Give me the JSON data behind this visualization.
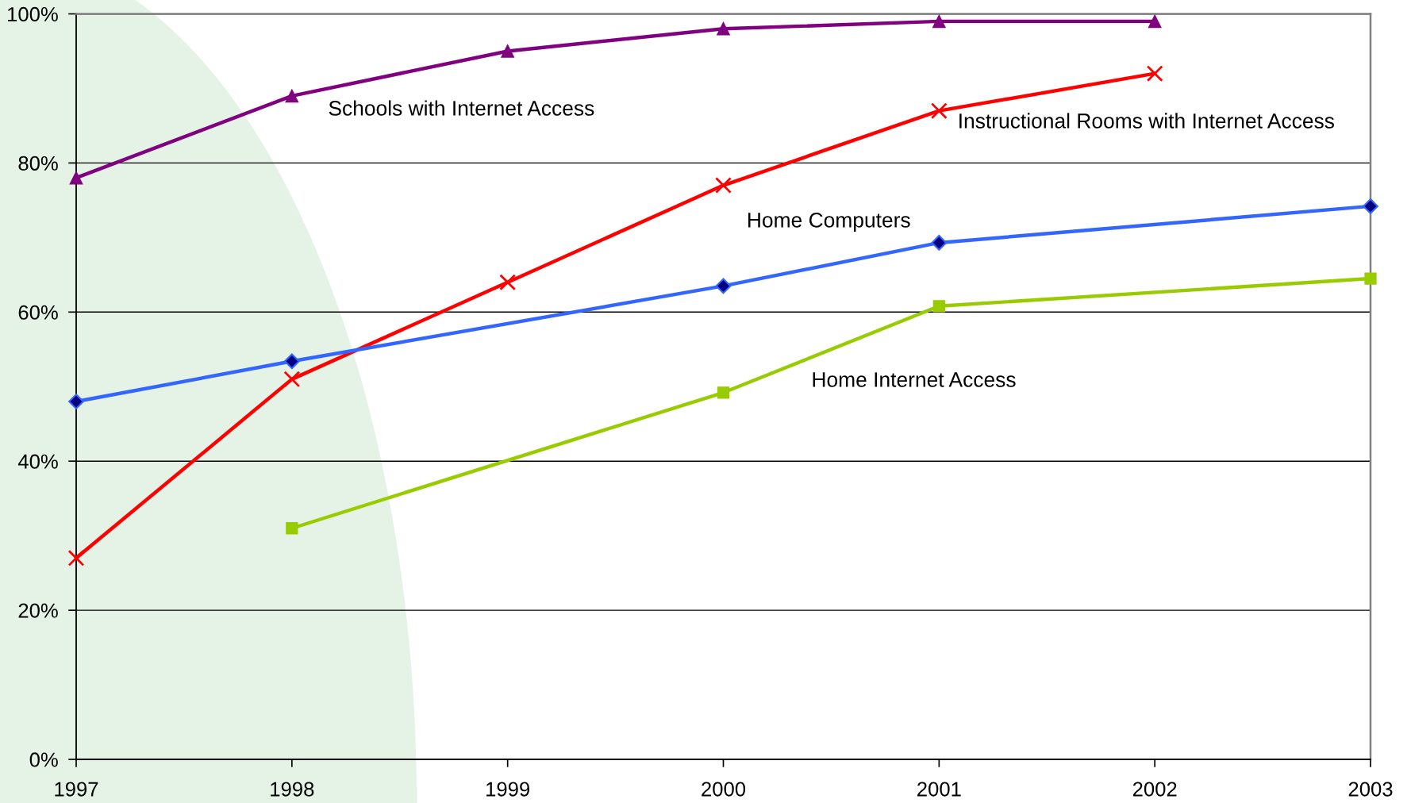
{
  "chart_data": {
    "type": "line",
    "xlim": [
      1997,
      2003
    ],
    "xticks": [
      1997,
      1998,
      1999,
      2000,
      2001,
      2002,
      2003
    ],
    "ylim": [
      0,
      100
    ],
    "yticks": [
      {
        "value": 0,
        "label": "0%"
      },
      {
        "value": 20,
        "label": "20%"
      },
      {
        "value": 40,
        "label": "40%"
      },
      {
        "value": 60,
        "label": "60%"
      },
      {
        "value": 80,
        "label": "80%"
      },
      {
        "value": 100,
        "label": "100%"
      }
    ],
    "grid": "y",
    "line_style": "solid",
    "series": [
      {
        "name": "Schools with Internet Access",
        "color": "#800080",
        "marker": "triangle",
        "x": [
          1997,
          1998,
          1999,
          2000,
          2001,
          2002
        ],
        "values": [
          78,
          89,
          95,
          98,
          99,
          99
        ]
      },
      {
        "name": "Instructional Rooms with Internet Access",
        "color": "#ff0000",
        "marker": "cross",
        "x": [
          1997,
          1998,
          1999,
          2000,
          2001,
          2002
        ],
        "values": [
          27,
          51,
          64,
          77,
          87,
          92
        ]
      },
      {
        "name": "Home Computers",
        "color": "#3366ff",
        "marker": "diamond",
        "x": [
          1997,
          1998,
          2000,
          2001,
          2003
        ],
        "values": [
          48,
          53.4,
          63.5,
          69.3,
          74.2
        ]
      },
      {
        "name": "Home Internet Access",
        "color": "#99cc00",
        "marker": "square",
        "x": [
          1998,
          2000,
          2001,
          2003
        ],
        "values": [
          31,
          49.2,
          60.8,
          64.5
        ]
      }
    ]
  }
}
